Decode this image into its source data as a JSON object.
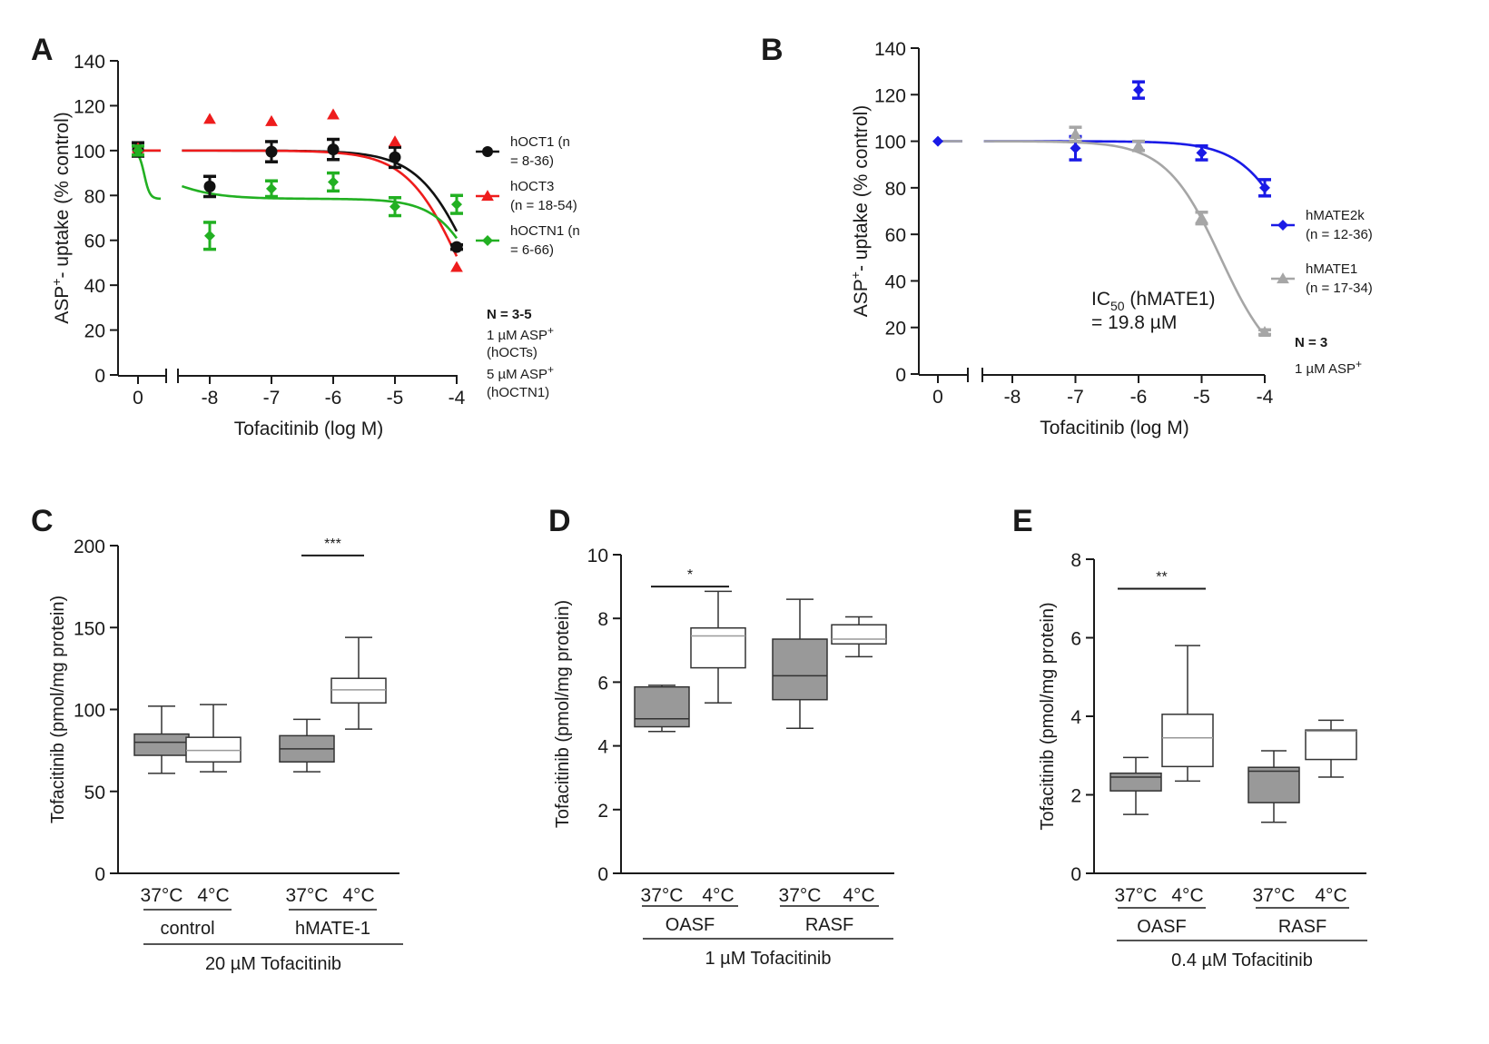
{
  "chart_data": [
    {
      "panel": "A",
      "type": "scatter",
      "ylabel": "ASP⁺- uptake (% control)",
      "xlabel": "Tofacitinib (log M)",
      "yticks": [
        0,
        20,
        40,
        60,
        80,
        100,
        120,
        140
      ],
      "ylim": [
        0,
        140
      ],
      "xticks": [
        "0",
        "-8",
        "-7",
        "-6",
        "-5",
        "-4"
      ],
      "series": [
        {
          "name": "hOCT1",
          "legend": [
            "hOCT1 (n",
            "= 8-36)"
          ],
          "color": "#111111",
          "marker": "circle",
          "points": [
            {
              "x": 0,
              "y": 100.5,
              "err": 3
            },
            {
              "x": -8,
              "y": 84,
              "err": 4.5
            },
            {
              "x": -7,
              "y": 99.5,
              "err": 4.5
            },
            {
              "x": -6,
              "y": 100.5,
              "err": 4.5
            },
            {
              "x": -5,
              "y": 97,
              "err": 4.5
            },
            {
              "x": -4,
              "y": 57,
              "err": 1
            }
          ],
          "fit": {
            "top": 100,
            "bottom": 0,
            "logIC50": -3.75,
            "hill": 1.0
          }
        },
        {
          "name": "hOCT3",
          "legend": [
            "hOCT3",
            "(n = 18-54)"
          ],
          "color": "#ee1c1c",
          "marker": "triangle",
          "points": [
            {
              "x": 0,
              "y": 101,
              "err": 0
            },
            {
              "x": -8,
              "y": 114,
              "err": 0
            },
            {
              "x": -7,
              "y": 113,
              "err": 0
            },
            {
              "x": -6,
              "y": 116,
              "err": 0
            },
            {
              "x": -5,
              "y": 104,
              "err": 0
            },
            {
              "x": -4,
              "y": 48,
              "err": 0
            }
          ],
          "fit": {
            "top": 100,
            "bottom": 0,
            "logIC50": -3.95,
            "hill": 1.0
          }
        },
        {
          "name": "hOCTN1",
          "legend": [
            "hOCTN1 (n",
            "= 6-66)"
          ],
          "color": "#22b022",
          "marker": "diamond",
          "points": [
            {
              "x": 0,
              "y": 100,
              "err": 2
            },
            {
              "x": -8,
              "y": 62,
              "err": 6
            },
            {
              "x": -7,
              "y": 83,
              "err": 3.5
            },
            {
              "x": -6,
              "y": 86,
              "err": 4
            },
            {
              "x": -5,
              "y": 75,
              "err": 4
            },
            {
              "x": -4,
              "y": 76,
              "err": 4
            }
          ],
          "fit": {
            "type": "two-site",
            "top": 100,
            "mid": 78.5,
            "logIC50": -8.9,
            "bottom": 0,
            "logIC50_2": -3.55
          }
        }
      ],
      "notes": [
        "N = 3-5",
        "1 µM ASP⁺",
        "(hOCTs)",
        "5 µM ASP⁺",
        "(hOCTN1)"
      ]
    },
    {
      "panel": "B",
      "type": "scatter",
      "ylabel": "ASP⁺- uptake (% control)",
      "xlabel": "Tofacitinib (log M)",
      "yticks": [
        0,
        20,
        40,
        60,
        80,
        100,
        120,
        140
      ],
      "ylim": [
        0,
        140
      ],
      "xticks": [
        "0",
        "-8",
        "-7",
        "-6",
        "-5",
        "-4"
      ],
      "series": [
        {
          "name": "hMATE2k",
          "legend": [
            "hMATE2k",
            "(n = 12-36)"
          ],
          "color": "#1a1ae6",
          "marker": "diamond",
          "points": [
            {
              "x": 0,
              "y": 100,
              "err": 0
            },
            {
              "x": -7,
              "y": 97,
              "err": 5
            },
            {
              "x": -6,
              "y": 122,
              "err": 3.5
            },
            {
              "x": -5,
              "y": 95,
              "err": 3
            },
            {
              "x": -4,
              "y": 80,
              "err": 3.5
            }
          ],
          "fit": {
            "top": 100,
            "bottom": 0,
            "logIC50": -3.4,
            "hill": 1.0
          }
        },
        {
          "name": "hMATE1",
          "legend": [
            "hMATE1",
            "(n = 17-34)"
          ],
          "color": "#a6a6a6",
          "marker": "triangle",
          "points": [
            {
              "x": -7,
              "y": 103,
              "err": 3
            },
            {
              "x": -6,
              "y": 98,
              "err": 2
            },
            {
              "x": -5,
              "y": 67,
              "err": 2.5
            },
            {
              "x": -4,
              "y": 18,
              "err": 1
            }
          ],
          "fit": {
            "top": 100,
            "bottom": 0,
            "logIC50": -4.7,
            "hill": 1.0
          }
        }
      ],
      "annotation": {
        "prefix": "IC",
        "sub": "50",
        "suffix": " (hMATE1)",
        "line2": "= 19.8 µM"
      },
      "notes": [
        "N = 3",
        "1 µM ASP⁺"
      ]
    },
    {
      "panel": "C",
      "type": "box",
      "ylabel": "Tofacitinib (pmol/mg protein)",
      "yticks": [
        0,
        50,
        100,
        150,
        200
      ],
      "ylim": [
        0,
        200
      ],
      "boxes": [
        {
          "label": "37°C",
          "fill": "#999999",
          "min": 61,
          "q1": 72,
          "median": 80,
          "q3": 85,
          "max": 102
        },
        {
          "label": "4°C",
          "fill": "#ffffff",
          "min": 62,
          "q1": 68,
          "median": 75,
          "q3": 83,
          "max": 103
        },
        {
          "label": "37°C",
          "fill": "#999999",
          "min": 62,
          "q1": 68,
          "median": 76,
          "q3": 84,
          "max": 94
        },
        {
          "label": "4°C",
          "fill": "#ffffff",
          "min": 88,
          "q1": 104,
          "median": 112,
          "q3": 119,
          "max": 144
        }
      ],
      "groups": [
        {
          "label": "control",
          "boxes": [
            0,
            1
          ]
        },
        {
          "label": "hMATE-1",
          "boxes": [
            2,
            3
          ]
        }
      ],
      "caption": "20 µM Tofacitinib",
      "significance": {
        "text": "***",
        "from": 2,
        "to": 3,
        "y": 194
      }
    },
    {
      "panel": "D",
      "type": "box",
      "ylabel": "Tofacitinib (pmol/mg protein)",
      "yticks": [
        0,
        2,
        4,
        6,
        8,
        10
      ],
      "ylim": [
        0,
        10
      ],
      "boxes": [
        {
          "label": "37°C",
          "fill": "#999999",
          "min": 4.45,
          "q1": 4.6,
          "median": 4.85,
          "q3": 5.85,
          "max": 5.9
        },
        {
          "label": "4°C",
          "fill": "#ffffff",
          "min": 5.35,
          "q1": 6.45,
          "median": 7.45,
          "q3": 7.7,
          "max": 8.85
        },
        {
          "label": "37°C",
          "fill": "#999999",
          "min": 4.55,
          "q1": 5.45,
          "median": 6.2,
          "q3": 7.35,
          "max": 8.6
        },
        {
          "label": "4°C",
          "fill": "#ffffff",
          "min": 6.8,
          "q1": 7.2,
          "median": 7.35,
          "q3": 7.8,
          "max": 8.05
        }
      ],
      "groups": [
        {
          "label": "OASF",
          "boxes": [
            0,
            1
          ]
        },
        {
          "label": "RASF",
          "boxes": [
            2,
            3
          ]
        }
      ],
      "caption": "1 µM Tofacitinib",
      "significance": {
        "text": "*",
        "from": 0,
        "to": 1,
        "y": 9.0
      }
    },
    {
      "panel": "E",
      "type": "box",
      "ylabel": "Tofacitinib (pmol/mg protein)",
      "yticks": [
        0,
        2,
        4,
        6,
        8
      ],
      "ylim": [
        0,
        8
      ],
      "boxes": [
        {
          "label": "37°C",
          "fill": "#999999",
          "min": 1.5,
          "q1": 2.1,
          "median": 2.45,
          "q3": 2.55,
          "max": 2.95
        },
        {
          "label": "4°C",
          "fill": "#ffffff",
          "min": 2.35,
          "q1": 2.72,
          "median": 3.45,
          "q3": 4.05,
          "max": 5.8
        },
        {
          "label": "37°C",
          "fill": "#999999",
          "min": 1.3,
          "q1": 1.8,
          "median": 2.6,
          "q3": 2.7,
          "max": 3.12
        },
        {
          "label": "4°C",
          "fill": "#ffffff",
          "min": 2.45,
          "q1": 2.9,
          "median": 3.62,
          "q3": 3.65,
          "max": 3.9
        }
      ],
      "groups": [
        {
          "label": "OASF",
          "boxes": [
            0,
            1
          ]
        },
        {
          "label": "RASF",
          "boxes": [
            2,
            3
          ]
        }
      ],
      "caption": "0.4 µM Tofacitinib",
      "significance": {
        "text": "**",
        "from": 0,
        "to": 1,
        "y": 7.25
      }
    }
  ]
}
